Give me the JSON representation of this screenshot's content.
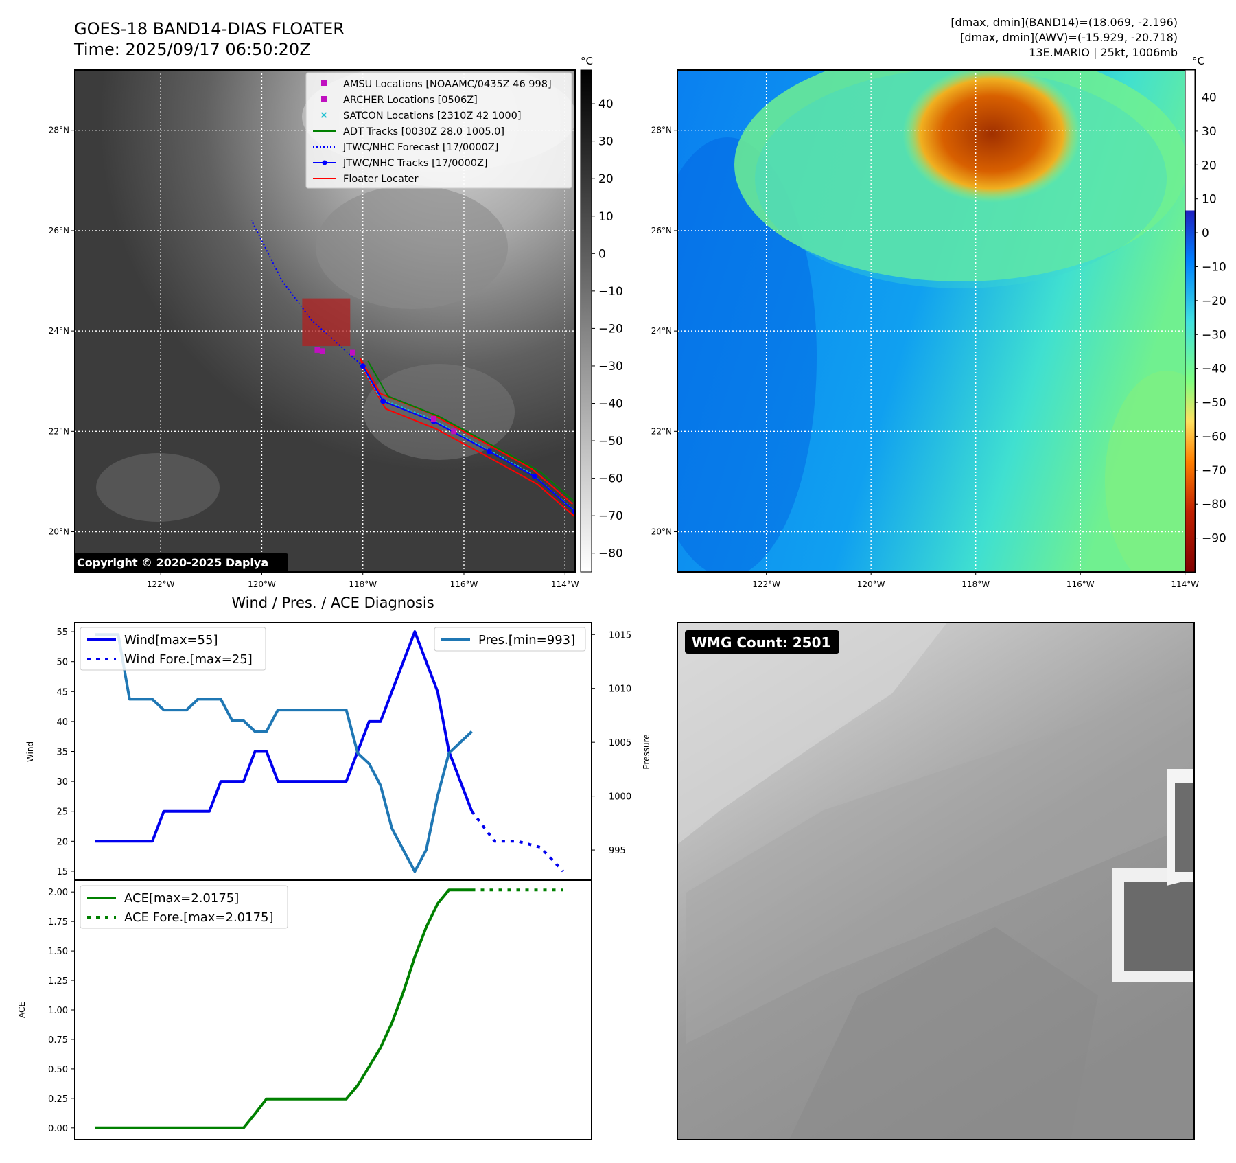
{
  "header": {
    "title": "GOES-18 BAND14-DIAS FLOATER",
    "time": "Time: 2025/09/17 06:50:20Z",
    "stat1": "[dmax, dmin](BAND14)=(18.069, -2.196)",
    "stat2": "[dmax, dmin](AWV)=(-15.929, -20.718)",
    "storm": "13E.MARIO | 25kt, 1006mb"
  },
  "copyright": "Copyright © 2020-2025 Dapiya",
  "wmg_count": "WMG Count: 2501",
  "chart_data": [
    {
      "id": "ir-map",
      "type": "map",
      "lon_labels": [
        "122°W",
        "120°W",
        "118°W",
        "116°W",
        "114°W"
      ],
      "lat_labels": [
        "28°N",
        "26°N",
        "24°N",
        "22°N",
        "20°N"
      ],
      "xlim": [
        -123.7,
        -113.8
      ],
      "ylim": [
        19.2,
        29.2
      ],
      "colorbar": {
        "unit": "°C",
        "ticks": [
          "40",
          "30",
          "20",
          "10",
          "0",
          "−10",
          "−20",
          "−30",
          "−40",
          "−50",
          "−60",
          "−70",
          "−80"
        ],
        "range": [
          -85,
          49
        ]
      },
      "legend": [
        {
          "label": "AMSU Locations [NOAAMC/0435Z 46 998]",
          "color": "#c010c0",
          "marker": "square"
        },
        {
          "label": "ARCHER Locations [0506Z]",
          "color": "#c010c0",
          "marker": "square"
        },
        {
          "label": "SATCON Locations [2310Z 42 1000]",
          "color": "#17becf",
          "marker": "x"
        },
        {
          "label": "ADT Tracks [0030Z 28.0 1005.0]",
          "color": "#008000",
          "marker": "line"
        },
        {
          "label": "JTWC/NHC Forecast [17/0000Z]",
          "color": "#0000ff",
          "marker": "dotted"
        },
        {
          "label": "JTWC/NHC Tracks [17/0000Z]",
          "color": "#0000ff",
          "marker": "line-dot"
        },
        {
          "label": "Floater Locater",
          "color": "#ff0000",
          "marker": "line"
        }
      ],
      "best_track": [
        [
          -113.8,
          20.4
        ],
        [
          -114.6,
          21.1
        ],
        [
          -115.5,
          21.6
        ],
        [
          -116.6,
          22.2
        ],
        [
          -117.6,
          22.6
        ],
        [
          -118.0,
          23.3
        ]
      ],
      "forecast": [
        [
          -118.0,
          23.3
        ],
        [
          -119.0,
          24.2
        ],
        [
          -119.6,
          25.0
        ],
        [
          -120.2,
          26.2
        ]
      ],
      "floater_box": {
        "lon": [
          -119.2,
          -118.25
        ],
        "lat": [
          23.7,
          24.65
        ]
      },
      "amsu": [
        [
          -118.2,
          23.57
        ],
        [
          -118.8,
          23.6
        ],
        [
          -118.9,
          23.62
        ],
        [
          -116.6,
          22.25
        ],
        [
          -116.2,
          22.0
        ]
      ]
    },
    {
      "id": "awv-map",
      "type": "map",
      "lon_labels": [
        "122°W",
        "120°W",
        "118°W",
        "116°W",
        "114°W"
      ],
      "lat_labels": [
        "28°N",
        "26°N",
        "24°N",
        "22°N",
        "20°N"
      ],
      "colorbar": {
        "unit": "°C",
        "ticks": [
          "40",
          "30",
          "20",
          "10",
          "0",
          "−10",
          "−20",
          "−30",
          "−40",
          "−50",
          "−60",
          "−70",
          "−80",
          "−90"
        ],
        "range": [
          -100,
          48
        ]
      }
    },
    {
      "id": "wind-pres",
      "type": "line",
      "title": "Wind / Pres. / ACE Diagnosis",
      "ylabel": "Wind",
      "ylabel2": "Pressure",
      "ylim": [
        13.5,
        56.5
      ],
      "y2lim": [
        992.2,
        1016.1
      ],
      "y_ticks": [
        15,
        20,
        25,
        30,
        35,
        40,
        45,
        50,
        55
      ],
      "y2_ticks": [
        995,
        1000,
        1005,
        1010,
        1015
      ],
      "legend": [
        {
          "label": "Wind[max=55]",
          "color": "#0000ee",
          "style": "solid"
        },
        {
          "label": "Wind Fore.[max=25]",
          "color": "#0000ee",
          "style": "dotted"
        },
        {
          "label": "Pres.[min=993]",
          "color": "#1f77b4",
          "style": "solid"
        }
      ],
      "series": [
        {
          "name": "Wind[max=55]",
          "x": [
            0,
            1,
            2,
            3,
            4,
            5,
            6,
            7,
            8,
            9,
            10,
            11,
            12,
            13,
            14,
            15,
            16,
            17,
            18,
            19,
            20,
            21,
            22,
            23,
            24,
            25,
            26,
            27,
            28,
            29,
            30,
            31,
            32,
            33
          ],
          "values": [
            20,
            20,
            20,
            20,
            20,
            20,
            25,
            25,
            25,
            25,
            25,
            30,
            30,
            30,
            35,
            35,
            30,
            30,
            30,
            30,
            30,
            30,
            30,
            35,
            40,
            40,
            45,
            50,
            55,
            50,
            45,
            35,
            30,
            25
          ]
        },
        {
          "name": "Wind Fore.[max=25]",
          "x": [
            33,
            35,
            37,
            39,
            41
          ],
          "values": [
            25,
            20,
            20,
            19,
            15
          ]
        },
        {
          "name": "Pres.[min=993]",
          "x": [
            0,
            1,
            2,
            3,
            4,
            5,
            6,
            7,
            8,
            9,
            10,
            11,
            12,
            13,
            14,
            15,
            16,
            17,
            18,
            19,
            20,
            21,
            22,
            23,
            24,
            25,
            26,
            27,
            28,
            29,
            30,
            31,
            32,
            33
          ],
          "values": [
            1015,
            1015,
            1015,
            1009,
            1009,
            1009,
            1008,
            1008,
            1008,
            1009,
            1009,
            1009,
            1007,
            1007,
            1006,
            1006,
            1008,
            1008,
            1008,
            1008,
            1008,
            1008,
            1008,
            1004,
            1003,
            1001,
            997,
            995,
            993,
            995,
            1000,
            1004,
            1005,
            1006
          ]
        }
      ]
    },
    {
      "id": "ace",
      "type": "line",
      "ylabel": "ACE",
      "ylim": [
        -0.1,
        2.1
      ],
      "y_ticks": [
        "0.00",
        "0.25",
        "0.50",
        "0.75",
        "1.00",
        "1.25",
        "1.50",
        "1.75",
        "2.00"
      ],
      "legend": [
        {
          "label": "ACE[max=2.0175]",
          "color": "#008000",
          "style": "solid"
        },
        {
          "label": "ACE Fore.[max=2.0175]",
          "color": "#008000",
          "style": "dotted"
        }
      ],
      "series": [
        {
          "name": "ACE[max=2.0175]",
          "x": [
            0,
            1,
            2,
            3,
            4,
            5,
            6,
            7,
            8,
            9,
            10,
            11,
            12,
            13,
            14,
            15,
            16,
            17,
            18,
            19,
            20,
            21,
            22,
            23,
            24,
            25,
            26,
            27,
            28,
            29,
            30,
            31,
            32,
            33
          ],
          "values": [
            0,
            0,
            0,
            0,
            0,
            0,
            0,
            0,
            0,
            0,
            0,
            0,
            0,
            0,
            0.12,
            0.245,
            0.245,
            0.245,
            0.245,
            0.245,
            0.245,
            0.245,
            0.245,
            0.36,
            0.52,
            0.68,
            0.89,
            1.15,
            1.45,
            1.7,
            1.9,
            2.0175,
            2.0175,
            2.0175
          ]
        },
        {
          "name": "ACE Fore.[max=2.0175]",
          "x": [
            33,
            35,
            37,
            39,
            41
          ],
          "values": [
            2.0175,
            2.0175,
            2.0175,
            2.0175,
            2.0175
          ]
        }
      ]
    }
  ]
}
